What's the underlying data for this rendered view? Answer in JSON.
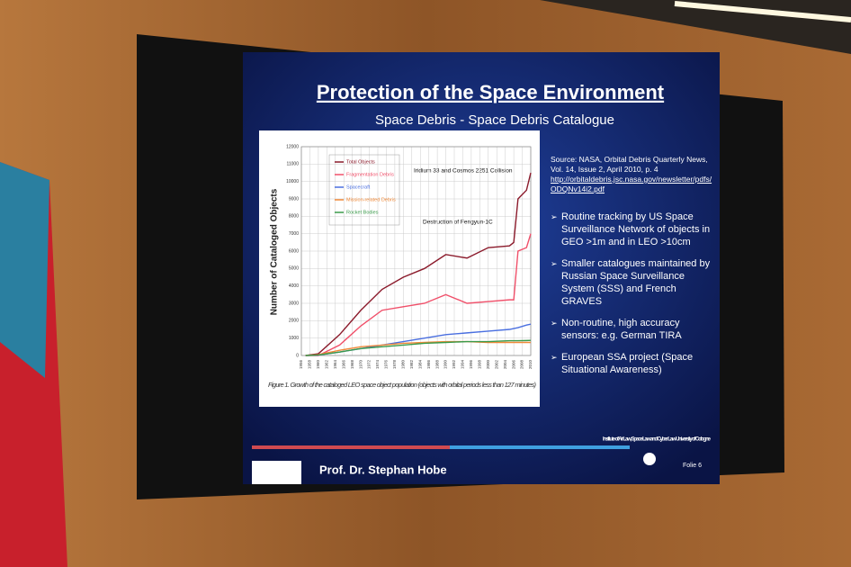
{
  "slide": {
    "title": "Protection of the Space Environment",
    "subtitle": "Space Debris - Space Debris Catalogue",
    "figure": {
      "y_label": "Number of Cataloged Objects",
      "ylim": [
        0,
        12000
      ],
      "yticks": [
        0,
        1000,
        2000,
        3000,
        4000,
        5000,
        6000,
        7000,
        8000,
        9000,
        10000,
        11000,
        12000
      ],
      "xlim": [
        1956,
        2010
      ],
      "xticks": [
        1956,
        1958,
        1960,
        1962,
        1964,
        1966,
        1968,
        1970,
        1972,
        1974,
        1976,
        1978,
        1980,
        1982,
        1984,
        1986,
        1988,
        1990,
        1992,
        1994,
        1996,
        1998,
        2000,
        2002,
        2004,
        2006,
        2008,
        2010
      ],
      "x": [
        1957,
        1960,
        1965,
        1970,
        1975,
        1980,
        1985,
        1990,
        1995,
        2000,
        2005,
        2006,
        2007,
        2009,
        2010
      ],
      "series": [
        {
          "name": "Total Objects",
          "color": "#8b1a2b",
          "values": [
            0,
            100,
            1200,
            2600,
            3800,
            4500,
            5000,
            5800,
            5600,
            6200,
            6300,
            6500,
            9000,
            9500,
            10500
          ]
        },
        {
          "name": "Fragmentation Debris",
          "color": "#f0506a",
          "values": [
            0,
            0,
            600,
            1700,
            2600,
            2800,
            3000,
            3500,
            3000,
            3100,
            3200,
            3200,
            6000,
            6200,
            7000
          ]
        },
        {
          "name": "Spacecraft",
          "color": "#4a6fe0",
          "values": [
            0,
            20,
            200,
            400,
            600,
            800,
            1000,
            1200,
            1300,
            1400,
            1500,
            1550,
            1600,
            1750,
            1800
          ]
        },
        {
          "name": "Mission-related Debris",
          "color": "#f08a3a",
          "values": [
            0,
            50,
            300,
            500,
            600,
            700,
            750,
            800,
            800,
            750,
            750,
            750,
            750,
            750,
            750
          ]
        },
        {
          "name": "Rocket Bodies",
          "color": "#3a9a4a",
          "values": [
            0,
            30,
            200,
            400,
            500,
            600,
            700,
            750,
            800,
            800,
            850,
            850,
            850,
            860,
            870
          ]
        }
      ],
      "annotations": [
        "Iridium 33 and Cosmos 2251 Collision",
        "Destruction of Fengyun-1C"
      ],
      "caption": "Figure 1. Growth of the cataloged LEO space object population (objects with orbital periods less than 127 minutes)"
    },
    "source": "Source: NASA, Orbital Debris Quarterly News, Vol. 14, Issue 2, April 2010, p. 4",
    "link": "http://orbitaldebris.jsc.nasa.gov/newsletter/pdfs/ODQNv14i2.pdf",
    "bullets": [
      "Routine tracking by US Space Surveillance Network of objects in GEO >1m and in LEO >10cm",
      "Smaller catalogues maintained by Russian Space Surveillance System (SSS) and French GRAVES",
      "Non-routine, high accuracy sensors: e.g. German TIRA",
      "European SSA project (Space Situational Awareness)"
    ],
    "presenter": "Prof. Dr. Stephan Hobe",
    "institute": "Institute of Air Law, Space Law and Cyber Law University of Cologne",
    "page": "Folie 6"
  }
}
